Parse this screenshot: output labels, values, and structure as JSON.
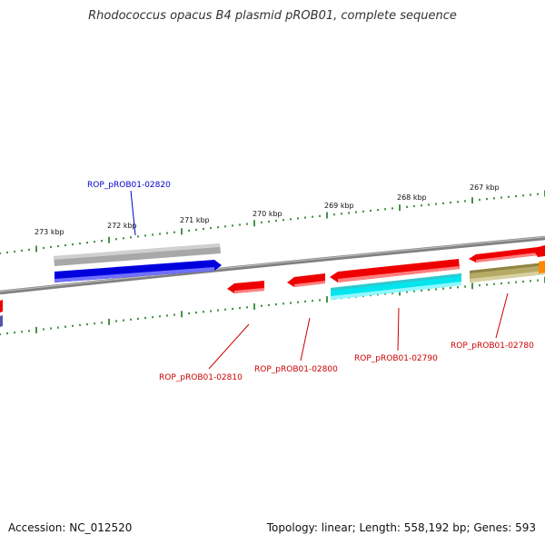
{
  "title": "Rhodococcus opacus B4 plasmid pROB01, complete sequence",
  "footer": {
    "accession": "Accession: NC_012520",
    "summary": "Topology: linear; Length: 558,192 bp; Genes: 593"
  },
  "ruler_labels": [
    "273 kbp",
    "272 kbp",
    "271 kbp",
    "270 kbp",
    "269 kbp",
    "268 kbp",
    "267 kbp"
  ],
  "gene_labels": [
    {
      "text": "ROP_pROB01-02820",
      "color": "#0000cc"
    },
    {
      "text": "ROP_pROB01-02810",
      "color": "#cc0000"
    },
    {
      "text": "ROP_pROB01-02800",
      "color": "#cc0000"
    },
    {
      "text": "ROP_pROB01-02790",
      "color": "#cc0000"
    },
    {
      "text": "ROP_pROB01-02780",
      "color": "#cc0000"
    }
  ],
  "colors": {
    "backbone": "#808080",
    "tick": "#1a7a1a",
    "gene_gray": "#b0b0b0",
    "gene_blue": "#0000dd",
    "gene_red": "#ee0000",
    "gene_cyan": "#00e5ee",
    "gene_olive": "#b5aa66",
    "gene_orange": "#ff8800"
  }
}
